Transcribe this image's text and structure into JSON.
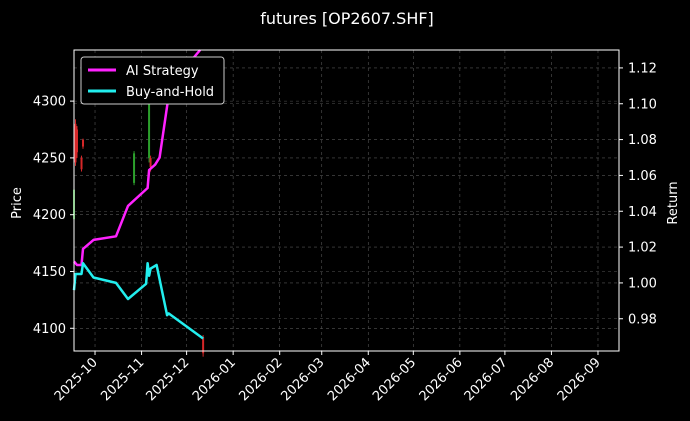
{
  "chart_data": {
    "type": "line",
    "title": "futures [OP2607.SHF]",
    "xlabel": "",
    "ylabel": "Price",
    "y2label": "Return",
    "x_range": [
      "2025-09-17",
      "2026-09-15"
    ],
    "x_ticks": [
      "2025-10",
      "2025-11",
      "2025-12",
      "2026-01",
      "2026-02",
      "2026-03",
      "2026-04",
      "2026-05",
      "2026-06",
      "2026-07",
      "2026-08",
      "2026-09"
    ],
    "ylim": [
      4080,
      4345
    ],
    "y_ticks": [
      4100,
      4150,
      4200,
      4250,
      4300
    ],
    "y2lim": [
      0.962,
      1.13
    ],
    "y2_ticks": [
      0.98,
      1.0,
      1.02,
      1.04,
      1.06,
      1.08,
      1.1,
      1.12
    ],
    "grid": true,
    "legend": {
      "placement": "top-left",
      "entries": [
        "AI Strategy",
        "Buy-and-Hold"
      ]
    },
    "colors": {
      "up": "#2ca02c",
      "down": "#d62728",
      "ai": "#ff22ff",
      "bh": "#22eeee",
      "background": "#000000"
    },
    "candles": [
      {
        "date": "2025-09-17",
        "open": 4196,
        "close": 4222,
        "high": 4232,
        "low": 4190
      },
      {
        "date": "2025-09-18",
        "open": 4280,
        "close": 4246,
        "high": 4284,
        "low": 4243
      },
      {
        "date": "2025-09-19",
        "open": 4275,
        "close": 4255,
        "high": 4278,
        "low": 4250
      },
      {
        "date": "2025-09-22",
        "open": 4250,
        "close": 4240,
        "high": 4252,
        "low": 4238
      },
      {
        "date": "2025-09-23",
        "open": 4266,
        "close": 4260,
        "high": 4267,
        "low": 4258
      },
      {
        "date": "2025-10-27",
        "open": 4228,
        "close": 4254,
        "high": 4256,
        "low": 4226
      },
      {
        "date": "2025-11-06",
        "open": 4250,
        "close": 4300,
        "high": 4308,
        "low": 4246
      },
      {
        "date": "2025-11-07",
        "open": 4250,
        "close": 4242,
        "high": 4252,
        "low": 4238
      },
      {
        "date": "2025-12-12",
        "open": 4092,
        "close": 4078,
        "high": 4094,
        "low": 4075
      }
    ],
    "series": [
      {
        "name": "AI Strategy",
        "x": [
          "2025-09-17",
          "2025-09-19",
          "2025-09-22",
          "2025-09-23",
          "2025-09-30",
          "2025-10-15",
          "2025-10-23",
          "2025-11-05",
          "2025-11-06",
          "2025-11-10",
          "2025-11-13",
          "2025-11-20",
          "2025-12-10"
        ],
        "values": [
          1.012,
          1.01,
          1.01,
          1.019,
          1.024,
          1.026,
          1.043,
          1.053,
          1.063,
          1.066,
          1.07,
          1.11,
          1.13
        ]
      },
      {
        "name": "Buy-and-Hold",
        "x": [
          "2025-09-17",
          "2025-09-18",
          "2025-09-22",
          "2025-09-23",
          "2025-09-30",
          "2025-10-15",
          "2025-10-23",
          "2025-11-04",
          "2025-11-05",
          "2025-11-06",
          "2025-11-07",
          "2025-11-11",
          "2025-11-18",
          "2025-11-19",
          "2025-12-12"
        ],
        "values": [
          0.996,
          1.005,
          1.005,
          1.011,
          1.003,
          1.0,
          0.991,
          0.9995,
          1.011,
          1.004,
          1.008,
          1.01,
          0.982,
          0.983,
          0.969
        ]
      }
    ]
  }
}
